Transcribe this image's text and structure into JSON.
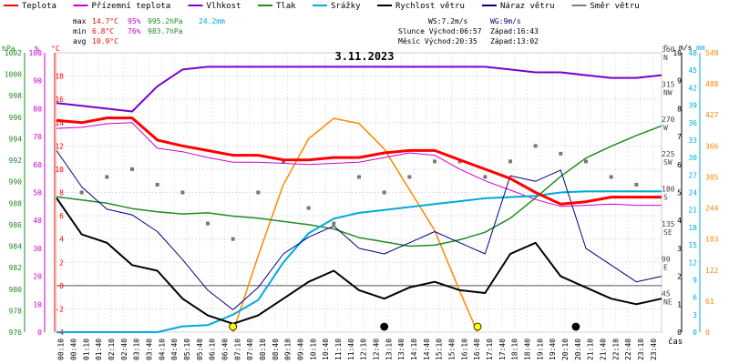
{
  "legend": [
    {
      "label": "Teplota",
      "color": "#ff0000"
    },
    {
      "label": "Přízemní teplota",
      "color": "#cc00cc"
    },
    {
      "label": "Vlhkost",
      "color": "#7a00cc"
    },
    {
      "label": "Tlak",
      "color": "#228b22"
    },
    {
      "label": "Srážky",
      "color": "#00aadd"
    },
    {
      "label": "Rychlost větru",
      "color": "#000000"
    },
    {
      "label": "Náraz větru",
      "color": "#000080"
    },
    {
      "label": "Směr větru",
      "color": "#808080"
    }
  ],
  "stats": {
    "max_label": "max",
    "max_temp": "14.7°C",
    "max_hum": "95%",
    "max_press": "995.2hPa",
    "max_rain": "24.2mm",
    "min_label": "min",
    "min_temp": "6.8°C",
    "min_hum": "76%",
    "min_press": "983.7hPa",
    "avg_label": "avg",
    "avg_temp": "10.9°C",
    "ws": "WS:7.2m/s",
    "wg": "WG:9m/s",
    "sun": "Slunce Východ:06:57",
    "sun_set": "Západ:16:43",
    "moon": "Měsíc Východ:20:35",
    "moon_set": "Západ:13:02"
  },
  "chart_data": {
    "type": "line",
    "title": "3.11.2023",
    "xlabel": "čas",
    "x_ticks": [
      "00:10",
      "00:40",
      "01:10",
      "01:40",
      "02:10",
      "02:40",
      "03:10",
      "03:40",
      "04:10",
      "04:40",
      "05:10",
      "05:40",
      "06:10",
      "06:40",
      "07:10",
      "07:40",
      "08:10",
      "08:40",
      "09:10",
      "09:40",
      "10:10",
      "10:40",
      "11:10",
      "11:40",
      "12:10",
      "12:40",
      "13:10",
      "13:40",
      "14:10",
      "14:40",
      "15:10",
      "15:40",
      "16:10",
      "16:40",
      "17:10",
      "17:40",
      "18:10",
      "18:40",
      "19:10",
      "19:40",
      "20:10",
      "20:40",
      "21:10",
      "21:40",
      "22:10",
      "22:40",
      "23:10",
      "23:40"
    ],
    "axes": {
      "pressure": {
        "label": "hPa",
        "range": [
          976,
          1002
        ],
        "ticks": [
          976,
          978,
          980,
          982,
          984,
          986,
          988,
          990,
          992,
          994,
          996,
          998,
          1000,
          1002
        ],
        "color": "#228b22"
      },
      "humidity": {
        "label": "%",
        "range": [
          0,
          100
        ],
        "ticks": [
          0,
          10,
          20,
          30,
          40,
          50,
          60,
          70,
          80,
          90,
          100
        ],
        "color": "#cc00cc"
      },
      "temperature": {
        "label": "°C",
        "range": [
          -4,
          20
        ],
        "ticks": [
          -4,
          -2,
          0,
          2,
          4,
          6,
          8,
          10,
          12,
          14,
          16,
          18
        ],
        "color": "#ff0000"
      },
      "direction": {
        "label": "°",
        "ticks": [
          "45 NE",
          "90 E",
          "135 SE",
          "180 S",
          "225 SW",
          "270 W",
          "315 NW",
          "360 N"
        ],
        "color": "#444444"
      },
      "wind": {
        "label": "m/s",
        "range": [
          0,
          10
        ],
        "ticks": [
          0,
          1,
          2,
          3,
          4,
          5,
          6,
          7,
          8,
          9,
          10
        ],
        "color": "#000000"
      },
      "rain": {
        "label": "mm",
        "range": [
          0,
          48
        ],
        "ticks": [
          0,
          3,
          6,
          9,
          12,
          15,
          18,
          21,
          24,
          27,
          30,
          33,
          36,
          39,
          42,
          45,
          48
        ],
        "color": "#00aadd"
      },
      "solar": {
        "range": [
          0,
          549
        ],
        "ticks": [
          0,
          61,
          122,
          183,
          244,
          305,
          366,
          427,
          488,
          549
        ],
        "color": "#ff8800"
      }
    },
    "series": [
      {
        "name": "Teplota",
        "color": "#ff0000",
        "x": [
          0,
          1,
          2,
          3,
          4,
          5,
          6,
          7,
          8,
          9,
          10,
          11,
          12,
          13,
          14,
          15,
          16,
          17,
          18,
          19,
          20,
          21,
          22,
          23,
          24
        ],
        "values": [
          14.2,
          14.0,
          14.4,
          14.4,
          12.5,
          12.0,
          11.6,
          11.2,
          11.2,
          10.8,
          10.8,
          11.0,
          11.0,
          11.4,
          11.6,
          11.6,
          10.8,
          10.0,
          9.2,
          8.0,
          7.0,
          7.2,
          7.6,
          7.6,
          7.6
        ]
      },
      {
        "name": "Přízemní teplota",
        "color": "#cc00cc",
        "x": [
          0,
          1,
          2,
          3,
          4,
          5,
          6,
          7,
          8,
          9,
          10,
          11,
          12,
          13,
          14,
          15,
          16,
          17,
          18,
          19,
          20,
          21,
          22,
          23,
          24
        ],
        "values": [
          13.5,
          13.6,
          13.9,
          14.0,
          11.8,
          11.5,
          11.0,
          10.6,
          10.6,
          10.5,
          10.4,
          10.5,
          10.6,
          11.0,
          11.4,
          11.2,
          10.0,
          9.0,
          8.2,
          7.4,
          6.8,
          6.9,
          7.0,
          6.9,
          6.9
        ]
      },
      {
        "name": "Vlhkost",
        "color": "#7a00cc",
        "x": [
          0,
          1,
          2,
          3,
          4,
          5,
          6,
          7,
          8,
          9,
          10,
          11,
          12,
          13,
          14,
          15,
          16,
          17,
          18,
          19,
          20,
          21,
          22,
          23,
          24
        ],
        "values": [
          82,
          81,
          80,
          79,
          88,
          94,
          95,
          95,
          95,
          95,
          95,
          95,
          95,
          95,
          95,
          95,
          95,
          95,
          94,
          93,
          93,
          92,
          91,
          91,
          92
        ]
      },
      {
        "name": "Tlak",
        "color": "#228b22",
        "x": [
          0,
          1,
          2,
          3,
          4,
          5,
          6,
          7,
          8,
          9,
          10,
          11,
          12,
          13,
          14,
          15,
          16,
          17,
          18,
          19,
          20,
          21,
          22,
          23,
          24
        ],
        "values": [
          988.6,
          988.3,
          988.0,
          987.5,
          987.2,
          987.0,
          987.1,
          986.8,
          986.6,
          986.3,
          986.0,
          985.6,
          984.8,
          984.4,
          984.0,
          984.1,
          984.6,
          985.3,
          986.6,
          988.5,
          990.5,
          992.2,
          993.3,
          994.3,
          995.2
        ]
      },
      {
        "name": "Srážky",
        "color": "#00aadd",
        "x": [
          0,
          4,
          5,
          6,
          7,
          8,
          9,
          10,
          11,
          12,
          13,
          14,
          15,
          16,
          17,
          18,
          19,
          20,
          21,
          22,
          23,
          24
        ],
        "values": [
          0,
          0,
          1.0,
          1.2,
          3.0,
          5.5,
          12.0,
          17.0,
          19.5,
          20.5,
          21.0,
          21.5,
          22.0,
          22.5,
          23.0,
          23.2,
          23.4,
          24.0,
          24.2,
          24.2,
          24.2,
          24.2
        ]
      },
      {
        "name": "Rychlost větru",
        "color": "#000000",
        "x": [
          0,
          1,
          2,
          3,
          4,
          5,
          6,
          7,
          8,
          9,
          10,
          11,
          12,
          13,
          14,
          15,
          16,
          17,
          18,
          19,
          20,
          21,
          22,
          23,
          24
        ],
        "values": [
          4.8,
          3.5,
          3.2,
          2.4,
          2.2,
          1.2,
          0.6,
          0.3,
          0.6,
          1.2,
          1.8,
          2.2,
          1.5,
          1.2,
          1.6,
          1.8,
          1.5,
          1.4,
          2.8,
          3.2,
          2.0,
          1.6,
          1.2,
          1.0,
          1.2
        ]
      },
      {
        "name": "Náraz větru",
        "color": "#000080",
        "x": [
          0,
          1,
          2,
          3,
          4,
          5,
          6,
          7,
          8,
          9,
          10,
          11,
          12,
          13,
          14,
          15,
          16,
          17,
          18,
          19,
          20,
          21,
          22,
          23,
          24
        ],
        "values": [
          6.5,
          5.2,
          4.4,
          4.2,
          3.6,
          2.6,
          1.5,
          0.8,
          1.6,
          2.8,
          3.4,
          3.8,
          3.0,
          2.8,
          3.2,
          3.6,
          3.2,
          2.8,
          5.6,
          5.4,
          5.8,
          3.0,
          2.4,
          1.8,
          2.0
        ]
      },
      {
        "name": "Slunce",
        "color": "#ff8800",
        "x": [
          7.0,
          8,
          9,
          10,
          11,
          12,
          13,
          14,
          15,
          16,
          16.7
        ],
        "values": [
          0,
          150,
          290,
          380,
          420,
          410,
          360,
          280,
          200,
          80,
          0
        ]
      }
    ],
    "direction_samples": [
      {
        "x": 1,
        "deg": 180
      },
      {
        "x": 2,
        "deg": 200
      },
      {
        "x": 3,
        "deg": 210
      },
      {
        "x": 4,
        "deg": 190
      },
      {
        "x": 5,
        "deg": 180
      },
      {
        "x": 6,
        "deg": 140
      },
      {
        "x": 7,
        "deg": 120
      },
      {
        "x": 8,
        "deg": 180
      },
      {
        "x": 9,
        "deg": 220
      },
      {
        "x": 10,
        "deg": 160
      },
      {
        "x": 11,
        "deg": 140
      },
      {
        "x": 12,
        "deg": 200
      },
      {
        "x": 13,
        "deg": 180
      },
      {
        "x": 14,
        "deg": 200
      },
      {
        "x": 15,
        "deg": 220
      },
      {
        "x": 16,
        "deg": 220
      },
      {
        "x": 17,
        "deg": 200
      },
      {
        "x": 18,
        "deg": 220
      },
      {
        "x": 19,
        "deg": 240
      },
      {
        "x": 20,
        "deg": 230
      },
      {
        "x": 21,
        "deg": 220
      },
      {
        "x": 22,
        "deg": 200
      },
      {
        "x": 23,
        "deg": 190
      }
    ],
    "markers": [
      {
        "x": 7.0,
        "color": "#ffff00"
      },
      {
        "x": 16.7,
        "color": "#ffff00"
      },
      {
        "x": 13.0,
        "color": "#000000"
      },
      {
        "x": 20.6,
        "color": "#000000"
      }
    ]
  }
}
